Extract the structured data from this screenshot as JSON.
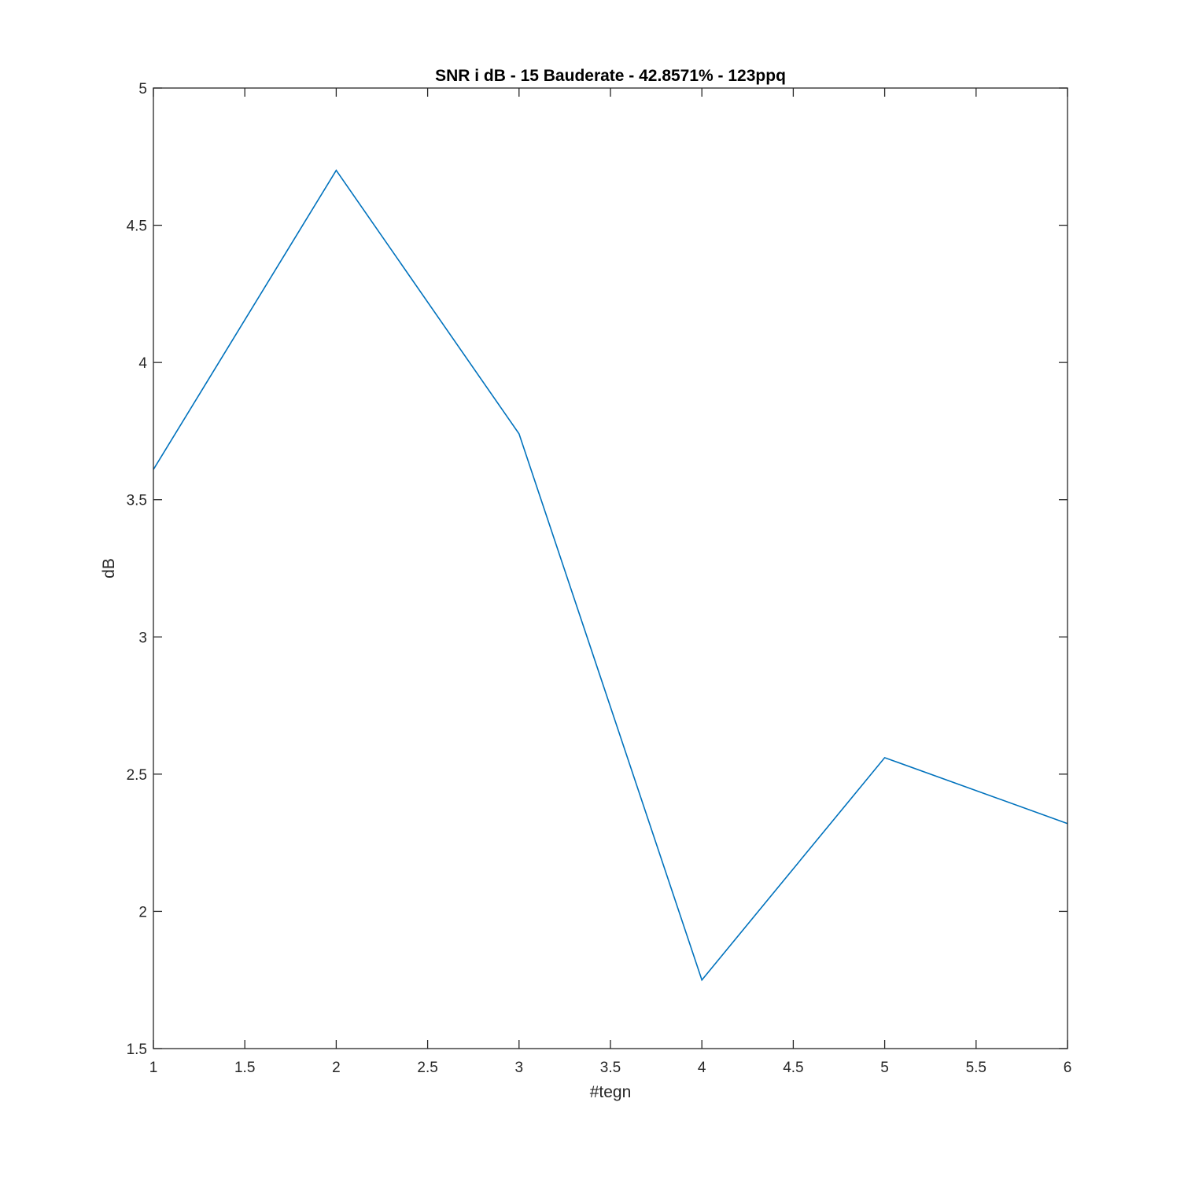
{
  "chart_data": {
    "type": "line",
    "title": "SNR i dB - 15 Bauderate - 42.8571% - 123ppq",
    "xlabel": "#tegn",
    "ylabel": "dB",
    "xlim": [
      1,
      6
    ],
    "ylim": [
      1.5,
      5
    ],
    "xticks": [
      1,
      1.5,
      2,
      2.5,
      3,
      3.5,
      4,
      4.5,
      5,
      5.5,
      6
    ],
    "xtick_labels": [
      "1",
      "1.5",
      "2",
      "2.5",
      "3",
      "3.5",
      "4",
      "4.5",
      "5",
      "5.5",
      "6"
    ],
    "yticks": [
      1.5,
      2,
      2.5,
      3,
      3.5,
      4,
      4.5,
      5
    ],
    "ytick_labels": [
      "1.5",
      "2",
      "2.5",
      "3",
      "3.5",
      "4",
      "4.5",
      "5"
    ],
    "grid": false,
    "series": [
      {
        "x": [
          1,
          2,
          3,
          4,
          5,
          6
        ],
        "y": [
          3.61,
          4.7,
          3.74,
          1.75,
          2.56,
          2.32
        ],
        "color": "#0072BD"
      }
    ]
  }
}
